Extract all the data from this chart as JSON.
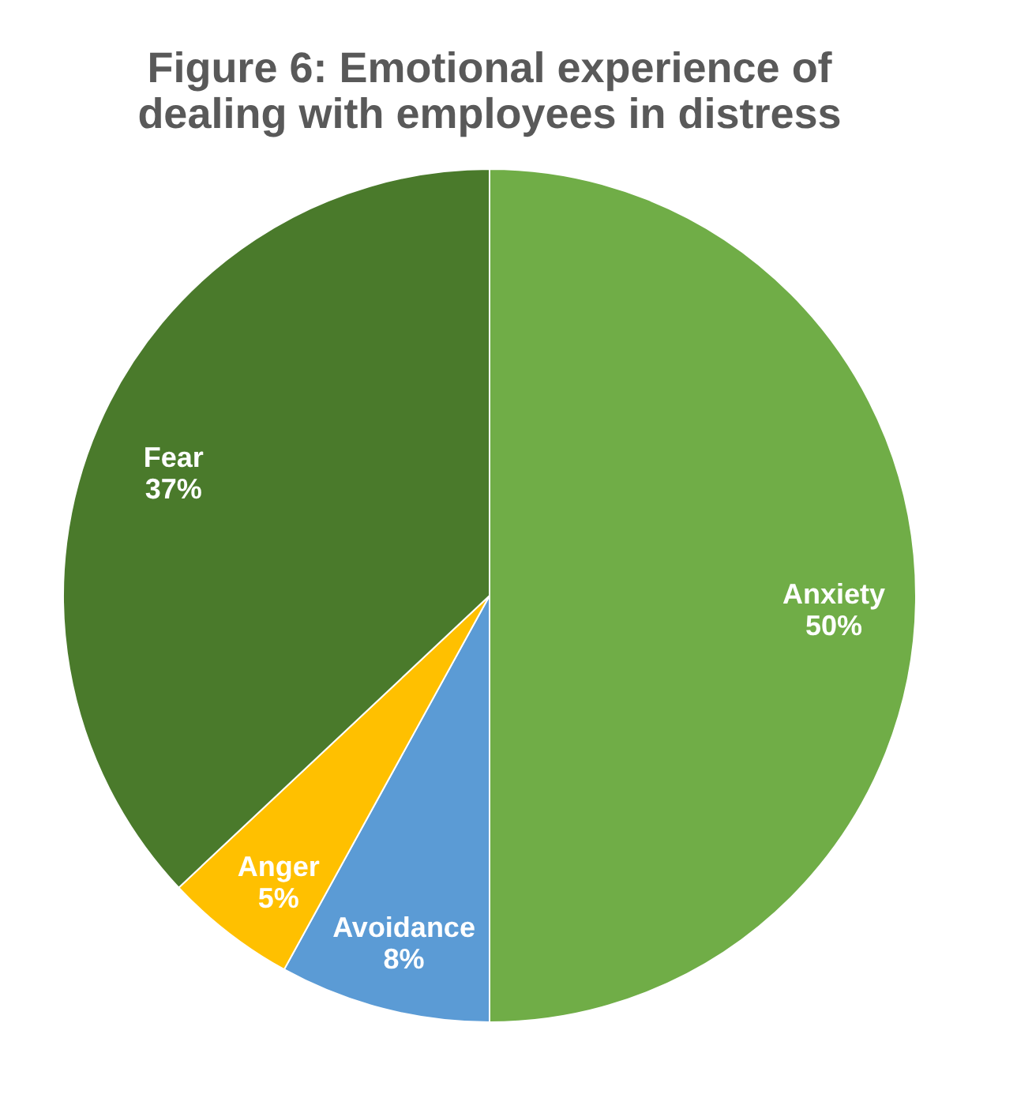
{
  "chart_data": {
    "type": "pie",
    "title": [
      "Figure 6: Emotional experience of",
      "dealing with employees in distress"
    ],
    "categories": [
      "Anxiety",
      "Avoidance",
      "Anger",
      "Fear"
    ],
    "values": [
      50,
      8,
      5,
      37
    ],
    "value_labels": [
      "50%",
      "8%",
      "5%",
      "37%"
    ],
    "colors": [
      "#70ad47",
      "#5b9bd5",
      "#ffc000",
      "#4a7a2b"
    ],
    "legend": false
  }
}
